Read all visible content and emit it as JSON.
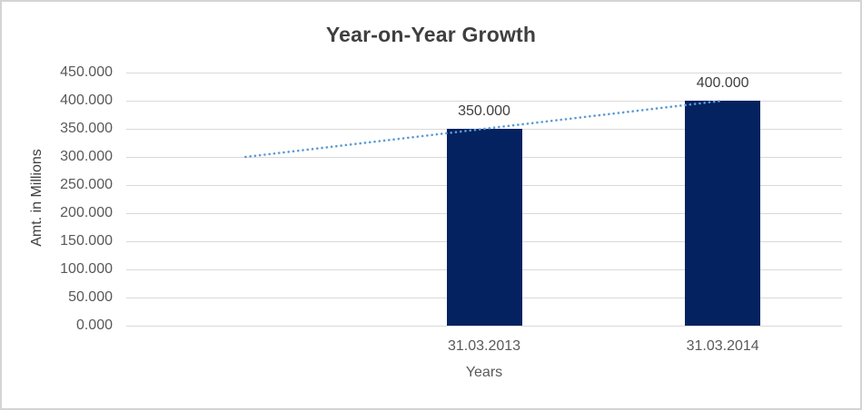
{
  "chart_data": {
    "type": "bar",
    "title": "Year-on-Year Growth",
    "xlabel": "Years",
    "ylabel": "Amt. in Millions",
    "categories": [
      "",
      "31.03.2013",
      "31.03.2014"
    ],
    "series": [
      {
        "name": "Amount",
        "type": "bar",
        "values": [
          null,
          350.0,
          400.0
        ],
        "color": "#04225f"
      },
      {
        "name": "linear-trendline",
        "type": "line",
        "style": "dotted",
        "values": [
          300.0,
          350.0,
          400.0
        ],
        "color": "#5b9bd5"
      }
    ],
    "data_labels": [
      null,
      "350.000",
      "400.000"
    ],
    "ylim": [
      0,
      450
    ],
    "ytick_step": 50,
    "ytick_labels": [
      "450.000",
      "400.000",
      "350.000",
      "300.000",
      "250.000",
      "200.000",
      "150.000",
      "100.000",
      "50.000",
      "0.000"
    ],
    "grid": true,
    "gridline_color": "#d9d9d9",
    "legend_position": "none"
  },
  "frame": {
    "border_color": "#d4d4d4",
    "background_color": "#ffffff",
    "title_color": "#3f3f3f",
    "tick_label_color": "#595959"
  }
}
